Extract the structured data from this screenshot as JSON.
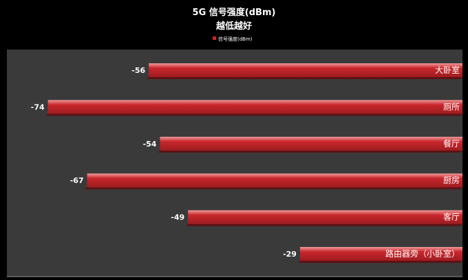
{
  "chart_data": {
    "type": "bar",
    "orientation": "horizontal",
    "title": "5G 信号强度(dBm)",
    "subtitle": "越低越好",
    "legend": {
      "position": "top",
      "label": "信号强度(dBm)"
    },
    "categories": [
      "大卧室",
      "厕所",
      "餐厅",
      "厨房",
      "客厅",
      "路由器旁（小卧室）"
    ],
    "series": [
      {
        "name": "信号强度(dBm)",
        "values": [
          -56,
          -74,
          -54,
          -67,
          -49,
          -29
        ]
      }
    ],
    "xlim": [
      -80,
      0
    ],
    "grid": false,
    "colors": {
      "bar": "#c8272c",
      "bar_top": "#f09a9a",
      "plot_bg": "#3a3a3a",
      "page_bg": "#000000",
      "text": "#ffffff",
      "axis": "#7a7a7a"
    }
  }
}
